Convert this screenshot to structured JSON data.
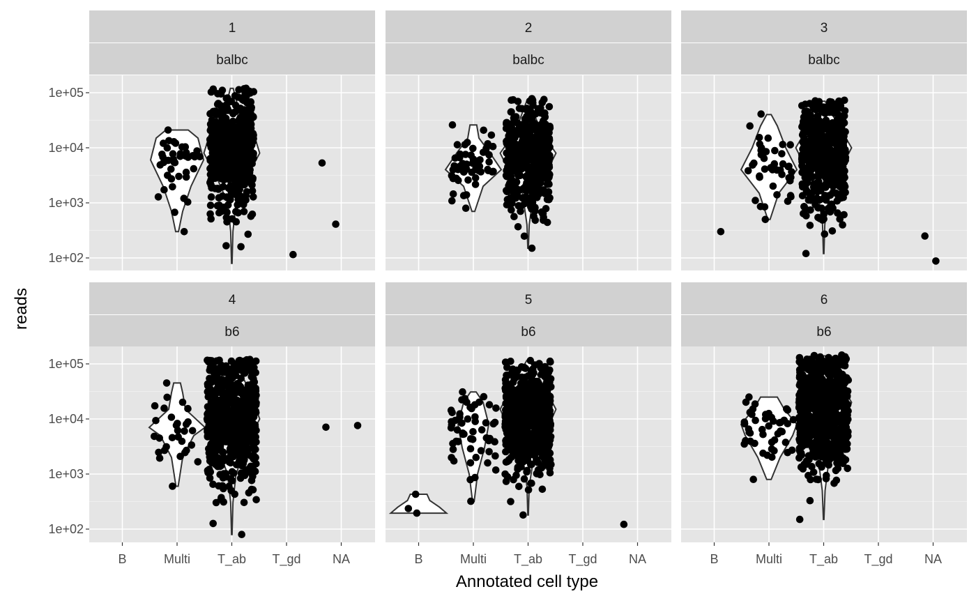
{
  "chart_data": {
    "type": "scatter",
    "subtype": "faceted violin with jittered points",
    "xlabel": "Annotated cell type",
    "ylabel": "reads",
    "categories": [
      "B",
      "Multi",
      "T_ab",
      "T_gd",
      "NA"
    ],
    "y_scale": "log10",
    "ylim": [
      75,
      150000
    ],
    "y_ticks": [
      {
        "value": 100,
        "label": "1e+02"
      },
      {
        "value": 1000,
        "label": "1e+03"
      },
      {
        "value": 10000,
        "label": "1e+04"
      },
      {
        "value": 100000,
        "label": "1e+05"
      }
    ],
    "grid": true,
    "panel_background": "#e5e5e5",
    "strip_background": "#d1d1d1",
    "point_color": "#000000",
    "panels": [
      {
        "strip": [
          "1",
          "balbc"
        ],
        "groups": [
          {
            "category": "Multi",
            "n": 40,
            "min": 300,
            "max": 21000,
            "median": 5000,
            "spread": 0.42,
            "violin": [
              [
                300,
                0.05
              ],
              [
                700,
                0.2
              ],
              [
                2000,
                0.5
              ],
              [
                6000,
                0.95
              ],
              [
                15000,
                0.75
              ],
              [
                21000,
                0.4
              ]
            ]
          },
          {
            "category": "T_ab",
            "n": 500,
            "min": 160,
            "max": 120000,
            "median": 8000,
            "spread": 0.4,
            "violin": [
              [
                80,
                0.01
              ],
              [
                300,
                0.04
              ],
              [
                1000,
                0.15
              ],
              [
                3000,
                0.55
              ],
              [
                8000,
                1.0
              ],
              [
                25000,
                0.7
              ],
              [
                60000,
                0.2
              ],
              [
                120000,
                0.05
              ]
            ]
          }
        ],
        "extra_points": [
          {
            "category": "T_gd",
            "offset": 0.12,
            "value": 115
          },
          {
            "category": "T_gd",
            "offset": 0.65,
            "value": 5300
          },
          {
            "category": "NA",
            "offset": -0.1,
            "value": 410
          }
        ]
      },
      {
        "strip": [
          "2",
          "balbc"
        ],
        "groups": [
          {
            "category": "Multi",
            "n": 55,
            "min": 800,
            "max": 26000,
            "median": 4500,
            "spread": 0.4,
            "violin": [
              [
                700,
                0.05
              ],
              [
                2000,
                0.35
              ],
              [
                4000,
                1.0
              ],
              [
                8000,
                0.6
              ],
              [
                15000,
                0.2
              ],
              [
                26000,
                0.12
              ]
            ]
          },
          {
            "category": "T_ab",
            "n": 500,
            "min": 150,
            "max": 78000,
            "median": 6000,
            "spread": 0.4,
            "violin": [
              [
                150,
                0.01
              ],
              [
                400,
                0.04
              ],
              [
                1500,
                0.2
              ],
              [
                4000,
                0.7
              ],
              [
                8000,
                1.0
              ],
              [
                20000,
                0.45
              ],
              [
                75000,
                0.03
              ]
            ]
          }
        ],
        "extra_points": []
      },
      {
        "strip": [
          "3",
          "balbc"
        ],
        "groups": [
          {
            "category": "Multi",
            "n": 45,
            "min": 500,
            "max": 41000,
            "median": 5000,
            "spread": 0.42,
            "violin": [
              [
                500,
                0.04
              ],
              [
                1500,
                0.35
              ],
              [
                4000,
                1.0
              ],
              [
                10000,
                0.6
              ],
              [
                25000,
                0.3
              ],
              [
                40000,
                0.08
              ]
            ]
          },
          {
            "category": "T_ab",
            "n": 500,
            "min": 120,
            "max": 73000,
            "median": 8000,
            "spread": 0.4,
            "violin": [
              [
                120,
                0.01
              ],
              [
                400,
                0.04
              ],
              [
                1500,
                0.2
              ],
              [
                4000,
                0.6
              ],
              [
                10000,
                1.0
              ],
              [
                30000,
                0.45
              ],
              [
                70000,
                0.05
              ]
            ]
          }
        ],
        "extra_points": [
          {
            "category": "B",
            "offset": 0.12,
            "value": 300
          },
          {
            "category": "NA",
            "offset": -0.15,
            "value": 250
          },
          {
            "category": "NA",
            "offset": 0.05,
            "value": 88
          }
        ]
      },
      {
        "strip": [
          "4",
          "b6"
        ],
        "groups": [
          {
            "category": "Multi",
            "n": 30,
            "min": 600,
            "max": 45000,
            "median": 7000,
            "spread": 0.42,
            "violin": [
              [
                600,
                0.04
              ],
              [
                2000,
                0.2
              ],
              [
                5000,
                0.6
              ],
              [
                7000,
                1.0
              ],
              [
                15000,
                0.3
              ],
              [
                30000,
                0.2
              ],
              [
                45000,
                0.12
              ]
            ]
          },
          {
            "category": "T_ab",
            "n": 650,
            "min": 80,
            "max": 120000,
            "median": 10000,
            "spread": 0.45,
            "violin": [
              [
                80,
                0.01
              ],
              [
                300,
                0.04
              ],
              [
                1000,
                0.15
              ],
              [
                4000,
                0.6
              ],
              [
                10000,
                1.0
              ],
              [
                40000,
                0.55
              ],
              [
                120000,
                0.06
              ]
            ]
          }
        ],
        "extra_points": [
          {
            "category": "T_gd",
            "offset": 0.72,
            "value": 7100
          },
          {
            "category": "NA",
            "offset": 0.3,
            "value": 7600
          }
        ]
      },
      {
        "strip": [
          "5",
          "b6"
        ],
        "groups": [
          {
            "category": "B",
            "n": 3,
            "min": 195,
            "max": 430,
            "median": 240,
            "spread": 0.35,
            "violin": [
              [
                195,
                1.0
              ],
              [
                250,
                0.75
              ],
              [
                330,
                0.4
              ],
              [
                430,
                0.3
              ]
            ]
          },
          {
            "category": "Multi",
            "n": 55,
            "min": 320,
            "max": 31000,
            "median": 7000,
            "spread": 0.42,
            "violin": [
              [
                320,
                0.03
              ],
              [
                1000,
                0.15
              ],
              [
                3000,
                0.4
              ],
              [
                8000,
                0.55
              ],
              [
                20000,
                0.35
              ],
              [
                31000,
                0.1
              ]
            ]
          },
          {
            "category": "T_ab",
            "n": 650,
            "min": 180,
            "max": 115000,
            "median": 10000,
            "spread": 0.42,
            "violin": [
              [
                180,
                0.01
              ],
              [
                600,
                0.04
              ],
              [
                2000,
                0.2
              ],
              [
                6000,
                0.65
              ],
              [
                15000,
                1.0
              ],
              [
                50000,
                0.45
              ],
              [
                115000,
                0.05
              ]
            ]
          }
        ],
        "extra_points": [
          {
            "category": "T_gd",
            "offset": 0.75,
            "value": 122
          }
        ]
      },
      {
        "strip": [
          "6",
          "b6"
        ],
        "groups": [
          {
            "category": "Multi",
            "n": 45,
            "min": 800,
            "max": 25000,
            "median": 7000,
            "spread": 0.45,
            "violin": [
              [
                800,
                0.08
              ],
              [
                2000,
                0.4
              ],
              [
                5000,
                0.85
              ],
              [
                8000,
                1.0
              ],
              [
                15000,
                0.55
              ],
              [
                25000,
                0.3
              ]
            ]
          },
          {
            "category": "T_ab",
            "n": 700,
            "min": 150,
            "max": 145000,
            "median": 15000,
            "spread": 0.45,
            "violin": [
              [
                150,
                0.01
              ],
              [
                500,
                0.05
              ],
              [
                2000,
                0.2
              ],
              [
                8000,
                0.7
              ],
              [
                20000,
                1.0
              ],
              [
                60000,
                0.45
              ],
              [
                140000,
                0.05
              ]
            ]
          }
        ],
        "extra_points": []
      }
    ]
  }
}
